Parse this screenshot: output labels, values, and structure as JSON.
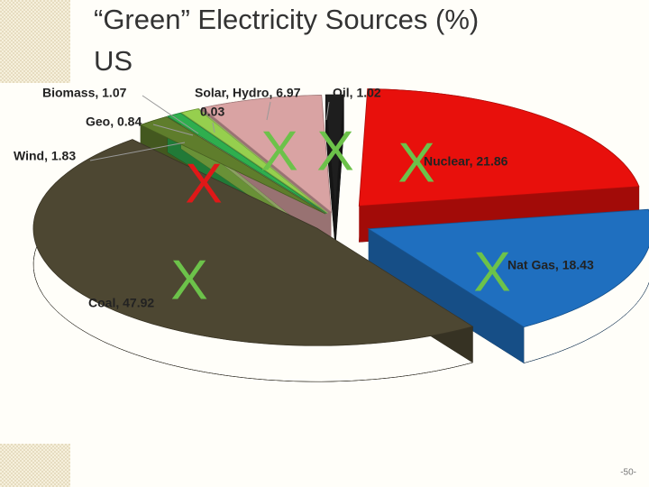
{
  "chart_data": {
    "type": "pie",
    "title": [
      "“Green” Electricity Sources (%)",
      "US"
    ],
    "values": [
      21.86,
      18.43,
      47.92,
      1.83,
      0.84,
      1.07,
      0.03,
      6.97,
      1.02
    ],
    "value_labels": [
      "Nuclear, 21.86",
      "Nat Gas, 18.43",
      "Coal, 47.92",
      "Wind, 1.83",
      "Geo, 0.84",
      "Biomass, 1.07",
      "0.03",
      "Solar, Hydro, 6.97",
      "Oil, 1.02"
    ],
    "colors": [
      "#e8100c",
      "#1f6fbf",
      "#4d4732",
      "#5f7d2c",
      "#2fae4e",
      "#96cf4e",
      "#c7e58a",
      "#d9a3a3",
      "#1e1e1e"
    ],
    "annotations": [
      {
        "text": "X",
        "color": "#e01818"
      },
      {
        "text": "X",
        "color": "#6cc24a"
      },
      {
        "text": "X",
        "color": "#6cc24a"
      },
      {
        "text": "X",
        "color": "#6cc24a"
      },
      {
        "text": "X",
        "color": "#6cc24a"
      },
      {
        "text": "X",
        "color": "#6cc24a"
      }
    ],
    "page_number": "-50-"
  }
}
